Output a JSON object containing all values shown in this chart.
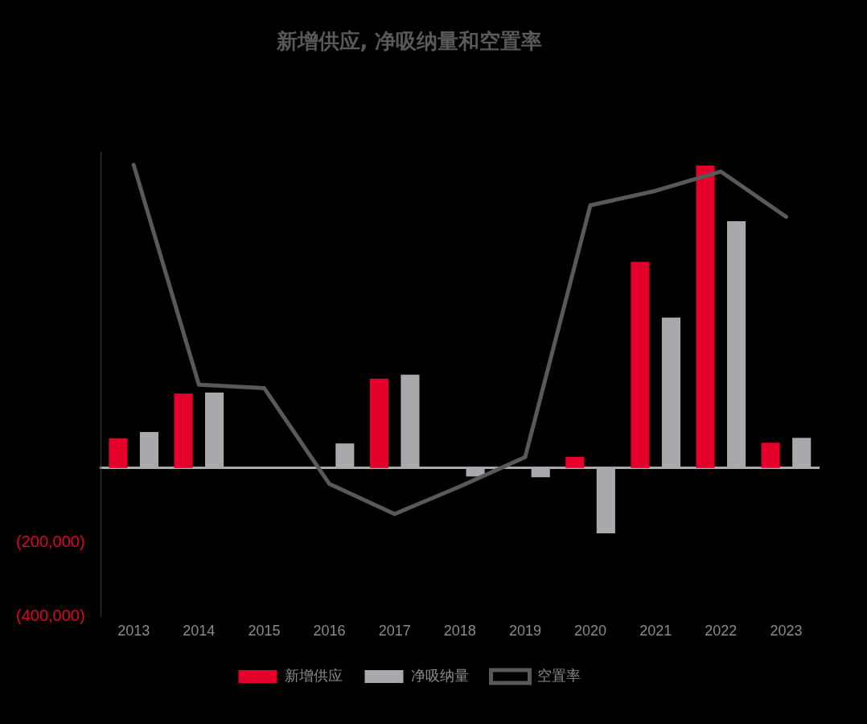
{
  "chart_data": {
    "type": "bar",
    "title": "新增供应, 净吸纳量和空置率",
    "categories": [
      "2013",
      "2014",
      "2015",
      "2016",
      "2017",
      "2018",
      "2019",
      "2020",
      "2021",
      "2022",
      "2023"
    ],
    "series": [
      {
        "name": "新增供应",
        "color": "#e4002b",
        "values": [
          80000,
          200000,
          null,
          null,
          240000,
          null,
          null,
          30000,
          555000,
          814000,
          68000
        ]
      },
      {
        "name": "净吸纳量",
        "color": "#a7a9ac",
        "values": [
          97000,
          203000,
          null,
          66000,
          251000,
          -23000,
          -25000,
          -176000,
          405000,
          664000,
          81000
        ]
      },
      {
        "name": "空置率",
        "type": "line",
        "color": "#58595b",
        "values": [
          816000,
          224000,
          215000,
          -43000,
          -124000,
          -50000,
          29000,
          707000,
          746000,
          798000,
          676000
        ]
      }
    ],
    "ylim": [
      -400000,
      850000
    ],
    "yticks": [
      {
        "value": -200000,
        "label": "(200,000)"
      },
      {
        "value": -400000,
        "label": "(400,000)"
      }
    ],
    "grid": false,
    "legend": "bottom",
    "marker": "none",
    "line_style": "solid"
  }
}
